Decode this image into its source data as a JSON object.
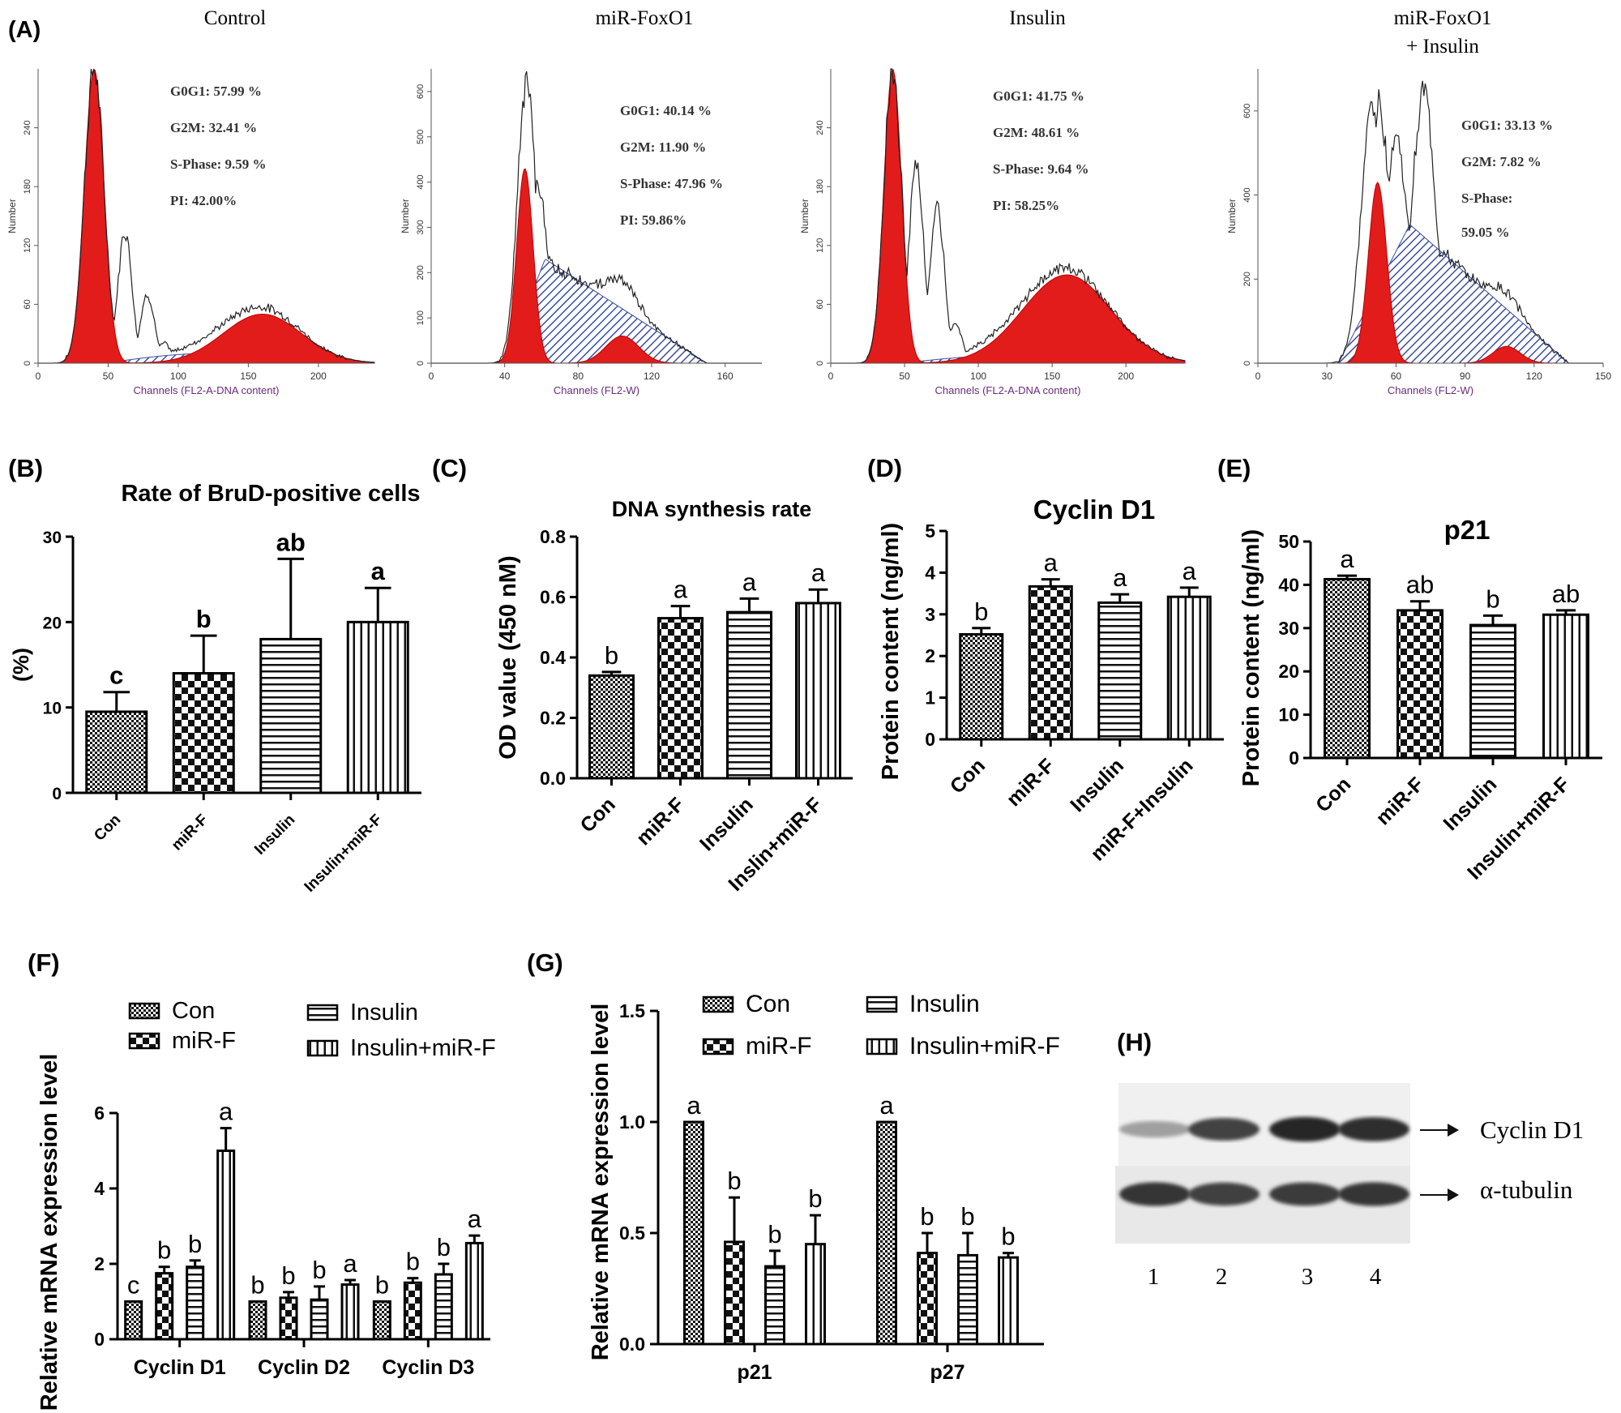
{
  "figure": {
    "panel_labels": [
      "(A)",
      "(B)",
      "(C)",
      "(D)",
      "(E)",
      "(F)",
      "(G)",
      "(H)"
    ]
  },
  "colors": {
    "red_fill": "#e21b1b",
    "hatch": "#3c4fa0",
    "axis_label": "#6a2b7c",
    "bar_stroke": "#000000"
  },
  "chart_data": [
    {
      "id": "A",
      "type": "histogram",
      "panels": [
        {
          "title": [
            "Control"
          ],
          "ylabel": "Number",
          "xlabel": "Channels (FL2-A-DNA content)",
          "xticks": [
            "0",
            "50",
            "100",
            "150",
            "200"
          ],
          "xlim": [
            0,
            240
          ],
          "yticks": [
            "0",
            "60",
            "120",
            "180",
            "240"
          ],
          "ylim": [
            0,
            300
          ],
          "stats": [
            "G0G1: 57.99 %",
            "G2M: 32.41 %",
            "S-Phase: 9.59 %",
            "PI: 42.00%"
          ],
          "g1": {
            "mu": 40,
            "sd": 7,
            "h": 300
          },
          "g2": {
            "mu": 160,
            "sd": 28,
            "h": 50
          },
          "s": {
            "from": 48,
            "to": 200,
            "h": 10
          },
          "envelope_extra": [
            [
              62,
              135
            ],
            [
              78,
              70
            ],
            [
              90,
              20
            ]
          ]
        },
        {
          "title": [
            "miR-FoxO1"
          ],
          "ylabel": "Number",
          "xlabel": "Channels (FL2-W)",
          "xticks": [
            "0",
            "40",
            "80",
            "120",
            "160"
          ],
          "xlim": [
            0,
            180
          ],
          "yticks": [
            "0",
            "100",
            "200",
            "300",
            "400",
            "500",
            "600"
          ],
          "ylim": [
            0,
            650
          ],
          "stats": [
            "G0G1: 40.14 %",
            "G2M: 11.90 %",
            "S-Phase: 47.96 %",
            "PI: 59.86%"
          ],
          "g1": {
            "mu": 51,
            "sd": 4.5,
            "h": 430
          },
          "g2": {
            "mu": 104,
            "sd": 9,
            "h": 60
          },
          "s": {
            "from": 40,
            "to": 150,
            "h": 230,
            "peak": 62
          },
          "envelope_extra": [
            [
              52,
              620
            ],
            [
              58,
              400
            ],
            [
              66,
              180
            ],
            [
              82,
              110
            ]
          ]
        },
        {
          "title": [
            "Insulin"
          ],
          "ylabel": "Number",
          "xlabel": "Channels (FL2-A-DNA content)",
          "xticks": [
            "0",
            "50",
            "100",
            "150",
            "200"
          ],
          "xlim": [
            0,
            240
          ],
          "yticks": [
            "0",
            "60",
            "120",
            "180",
            "240"
          ],
          "ylim": [
            0,
            300
          ],
          "stats": [
            "G0G1: 41.75 %",
            "G2M: 48.61 %",
            "S-Phase: 9.64 %",
            "PI: 58.25%"
          ],
          "g1": {
            "mu": 42,
            "sd": 6,
            "h": 300
          },
          "g2": {
            "mu": 160,
            "sd": 30,
            "h": 90
          },
          "s": {
            "from": 48,
            "to": 200,
            "h": 8
          },
          "envelope_extra": [
            [
              58,
              200
            ],
            [
              72,
              160
            ],
            [
              84,
              40
            ]
          ]
        },
        {
          "title": [
            "miR-FoxO1",
            "+ Insulin"
          ],
          "ylabel": "Number",
          "xlabel": "Channels (FL2-W)",
          "xticks": [
            "0",
            "30",
            "60",
            "90",
            "120",
            "150"
          ],
          "xlim": [
            0,
            150
          ],
          "yticks": [
            "0",
            "200",
            "400",
            "600"
          ],
          "ylim": [
            0,
            700
          ],
          "stats": [
            "G0G1: 33.13 %",
            "G2M: 7.82 %",
            "S-Phase:",
            "59.05 %"
          ],
          "g1": {
            "mu": 52,
            "sd": 4,
            "h": 430
          },
          "g2": {
            "mu": 108,
            "sd": 6,
            "h": 40
          },
          "s": {
            "from": 35,
            "to": 135,
            "h": 330,
            "peak": 66
          },
          "envelope_extra": [
            [
              50,
              620
            ],
            [
              60,
              540
            ],
            [
              72,
              650
            ],
            [
              80,
              260
            ]
          ]
        }
      ]
    },
    {
      "id": "B",
      "type": "bar",
      "title": "Rate of BruD-positive cells",
      "ylabel": "(%)",
      "yticks": [
        "0",
        "10",
        "20",
        "30"
      ],
      "ylim": [
        0,
        30
      ],
      "categories": [
        "Con",
        "miR-F",
        "Insulin",
        "Insulin+miR-F"
      ],
      "values": [
        9.5,
        14,
        18,
        20
      ],
      "errors": [
        2.3,
        4.4,
        9.4,
        4
      ],
      "letters": [
        "c",
        "b",
        "ab",
        "a"
      ],
      "patterns": [
        "checker",
        "dots",
        "hlines",
        "vlines"
      ]
    },
    {
      "id": "C",
      "type": "bar",
      "title": "DNA synthesis rate",
      "ylabel": "OD value (450 nM)",
      "yticks": [
        "0.0",
        "0.2",
        "0.4",
        "0.6",
        "0.8"
      ],
      "ylim": [
        0,
        0.8
      ],
      "categories": [
        "Con",
        "miR-F",
        "Insulin",
        "Inslin+miR-F"
      ],
      "values": [
        0.34,
        0.53,
        0.55,
        0.58
      ],
      "errors": [
        0.012,
        0.04,
        0.045,
        0.045
      ],
      "letters": [
        "b",
        "a",
        "a",
        "a"
      ],
      "patterns": [
        "checker",
        "dots",
        "hlines",
        "vlines"
      ]
    },
    {
      "id": "D",
      "type": "bar",
      "title": "Cyclin D1",
      "ylabel": "Protein content (ng/ml)",
      "yticks": [
        "0",
        "1",
        "2",
        "3",
        "4",
        "5"
      ],
      "ylim": [
        0,
        5
      ],
      "categories": [
        "Con",
        "miR-F",
        "Insulin",
        "miR-F+Insulin"
      ],
      "values": [
        2.52,
        3.67,
        3.28,
        3.42
      ],
      "errors": [
        0.15,
        0.17,
        0.2,
        0.22
      ],
      "letters": [
        "b",
        "a",
        "a",
        "a"
      ],
      "patterns": [
        "checker",
        "dots",
        "hlines",
        "vlines"
      ]
    },
    {
      "id": "E",
      "type": "bar",
      "title": "p21",
      "ylabel": "Protein content (ng/ml)",
      "yticks": [
        "0",
        "10",
        "20",
        "30",
        "40",
        "50"
      ],
      "ylim": [
        0,
        50
      ],
      "categories": [
        "Con",
        "miR-F",
        "Insulin",
        "Insulin+miR-F"
      ],
      "values": [
        41.3,
        34.1,
        30.7,
        33.1
      ],
      "errors": [
        0.8,
        2.1,
        2.2,
        1
      ],
      "letters": [
        "a",
        "ab",
        "b",
        "ab"
      ],
      "patterns": [
        "checker",
        "dots",
        "hlines",
        "vlines"
      ]
    },
    {
      "id": "F",
      "type": "grouped-bar",
      "ylabel": "Relative mRNA expression level",
      "yticks": [
        "0",
        "2",
        "4",
        "6"
      ],
      "ylim": [
        0,
        6
      ],
      "categories": [
        "Cyclin D1",
        "Cyclin D2",
        "Cyclin D3"
      ],
      "legend": [
        "Con",
        "miR-F",
        "Insulin",
        "Insulin+miR-F"
      ],
      "series": [
        {
          "name": "Con",
          "values": [
            1.0,
            1.0,
            1.0
          ],
          "errors": [
            0,
            0,
            0
          ],
          "letters": [
            "c",
            "b",
            "b"
          ],
          "pattern": "checker"
        },
        {
          "name": "miR-F",
          "values": [
            1.75,
            1.1,
            1.5
          ],
          "errors": [
            0.17,
            0.15,
            0.12
          ],
          "letters": [
            "b",
            "b",
            "b"
          ],
          "pattern": "dots"
        },
        {
          "name": "Insulin",
          "values": [
            1.92,
            1.05,
            1.72
          ],
          "errors": [
            0.17,
            0.35,
            0.28
          ],
          "letters": [
            "b",
            "b",
            "b"
          ],
          "pattern": "hlines"
        },
        {
          "name": "Insulin+miR-F",
          "values": [
            5.0,
            1.45,
            2.55
          ],
          "errors": [
            0.6,
            0.12,
            0.2
          ],
          "letters": [
            "a",
            "a",
            "a"
          ],
          "pattern": "vlines"
        }
      ]
    },
    {
      "id": "G",
      "type": "grouped-bar",
      "ylabel": "Relative mRNA expression level",
      "yticks": [
        "0.0",
        "0.5",
        "1.0",
        "1.5"
      ],
      "ylim": [
        0,
        1.5
      ],
      "categories": [
        "p21",
        "p27"
      ],
      "legend": [
        "Con",
        "miR-F",
        "Insulin",
        "Insulin+miR-F"
      ],
      "series": [
        {
          "name": "Con",
          "values": [
            1.0,
            1.0
          ],
          "errors": [
            0,
            0
          ],
          "letters": [
            "a",
            "a"
          ],
          "pattern": "checker"
        },
        {
          "name": "miR-F",
          "values": [
            0.46,
            0.41
          ],
          "errors": [
            0.2,
            0.09
          ],
          "letters": [
            "b",
            "b"
          ],
          "pattern": "dots"
        },
        {
          "name": "Insulin",
          "values": [
            0.35,
            0.4
          ],
          "errors": [
            0.07,
            0.1
          ],
          "letters": [
            "b",
            "b"
          ],
          "pattern": "hlines"
        },
        {
          "name": "Insulin+miR-F",
          "values": [
            0.45,
            0.39
          ],
          "errors": [
            0.13,
            0.02
          ],
          "letters": [
            "b",
            "b"
          ],
          "pattern": "vlines"
        }
      ]
    },
    {
      "id": "H",
      "type": "western-blot",
      "rows": [
        "Cyclin D1",
        "α-tubulin"
      ],
      "lanes": [
        "1",
        "2",
        "3",
        "4"
      ],
      "band_intensity": [
        [
          0.35,
          0.78,
          0.92,
          0.88
        ],
        [
          0.85,
          0.8,
          0.82,
          0.85
        ]
      ]
    }
  ]
}
